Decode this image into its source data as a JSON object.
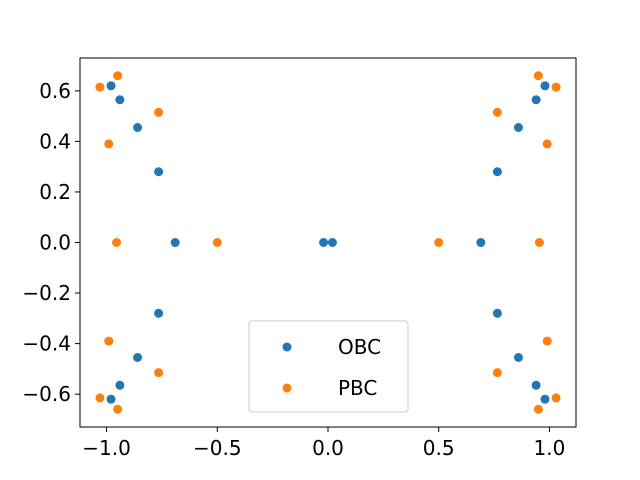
{
  "chart_data": {
    "type": "scatter",
    "xlim": [
      -1.12,
      1.12
    ],
    "ylim": [
      -0.73,
      0.73
    ],
    "x_ticks": [
      -1.0,
      -0.5,
      0.0,
      0.5,
      1.0
    ],
    "x_tick_labels": [
      "−1.0",
      "−0.5",
      "0.0",
      "0.5",
      "1.0"
    ],
    "y_ticks": [
      -0.6,
      -0.4,
      -0.2,
      0.0,
      0.2,
      0.4,
      0.6
    ],
    "y_tick_labels": [
      "−0.6",
      "−0.4",
      "−0.2",
      "0.0",
      "0.2",
      "0.4",
      "0.6"
    ],
    "grid": false,
    "legend_position": "lower-center",
    "series": [
      {
        "name": "OBC",
        "color": "#1f77b4",
        "points": [
          [
            -0.98,
            0.62
          ],
          [
            -0.94,
            0.565
          ],
          [
            -0.86,
            0.455
          ],
          [
            -0.765,
            0.28
          ],
          [
            -0.69,
            0.0
          ],
          [
            -0.765,
            -0.28
          ],
          [
            -0.86,
            -0.455
          ],
          [
            -0.94,
            -0.565
          ],
          [
            -0.98,
            -0.62
          ],
          [
            -0.02,
            0.0
          ],
          [
            0.02,
            0.0
          ],
          [
            0.98,
            0.62
          ],
          [
            0.94,
            0.565
          ],
          [
            0.86,
            0.455
          ],
          [
            0.765,
            0.28
          ],
          [
            0.69,
            0.0
          ],
          [
            0.765,
            -0.28
          ],
          [
            0.86,
            -0.455
          ],
          [
            0.94,
            -0.565
          ],
          [
            0.98,
            -0.62
          ]
        ]
      },
      {
        "name": "PBC",
        "color": "#ff7f0e",
        "points": [
          [
            -1.03,
            0.615
          ],
          [
            -0.95,
            0.66
          ],
          [
            -0.99,
            0.39
          ],
          [
            -0.765,
            0.515
          ],
          [
            -0.955,
            0.0
          ],
          [
            -0.5,
            0.0
          ],
          [
            -0.99,
            -0.39
          ],
          [
            -0.765,
            -0.515
          ],
          [
            -1.03,
            -0.615
          ],
          [
            -0.95,
            -0.66
          ],
          [
            1.03,
            0.615
          ],
          [
            0.95,
            0.66
          ],
          [
            0.99,
            0.39
          ],
          [
            0.765,
            0.515
          ],
          [
            0.955,
            0.0
          ],
          [
            0.5,
            0.0
          ],
          [
            0.99,
            -0.39
          ],
          [
            0.765,
            -0.515
          ],
          [
            1.03,
            -0.615
          ],
          [
            0.95,
            -0.66
          ]
        ]
      }
    ]
  }
}
